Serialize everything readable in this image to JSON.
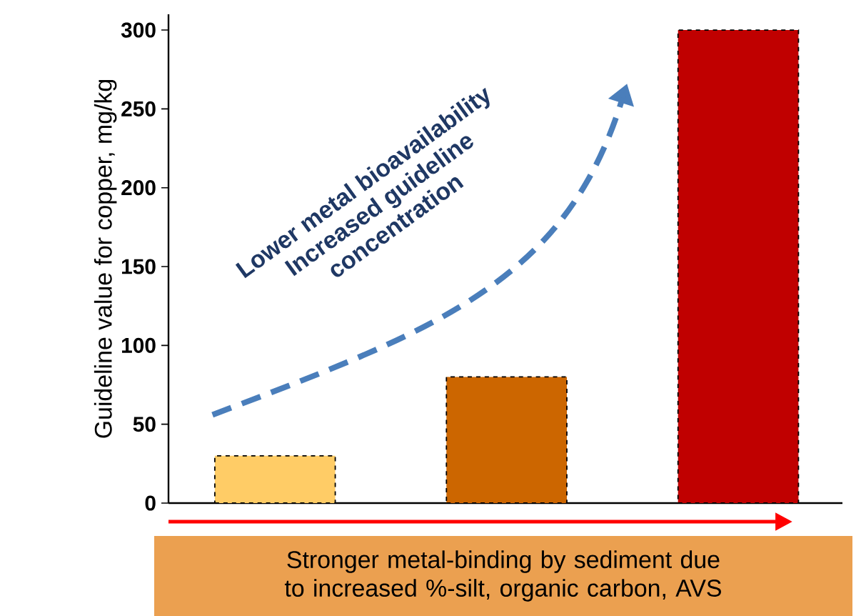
{
  "chart_data": {
    "type": "bar",
    "ylabel": "Guideline value for copper, mg/kg",
    "categories": [
      null,
      null,
      null
    ],
    "values": [
      30,
      80,
      300
    ],
    "colors": [
      "#ffcc66",
      "#cc6600",
      "#c00000"
    ],
    "ylim": [
      0,
      310
    ],
    "yticks": [
      0,
      50,
      100,
      150,
      200,
      250,
      300
    ],
    "tick_labels": "y",
    "annotations": [
      "Lower metal bioavailability",
      "Increased guideline",
      "concentration",
      "Stronger metal-binding by sediment  due to increased %-silt, organic carbon, AVS"
    ]
  }
}
